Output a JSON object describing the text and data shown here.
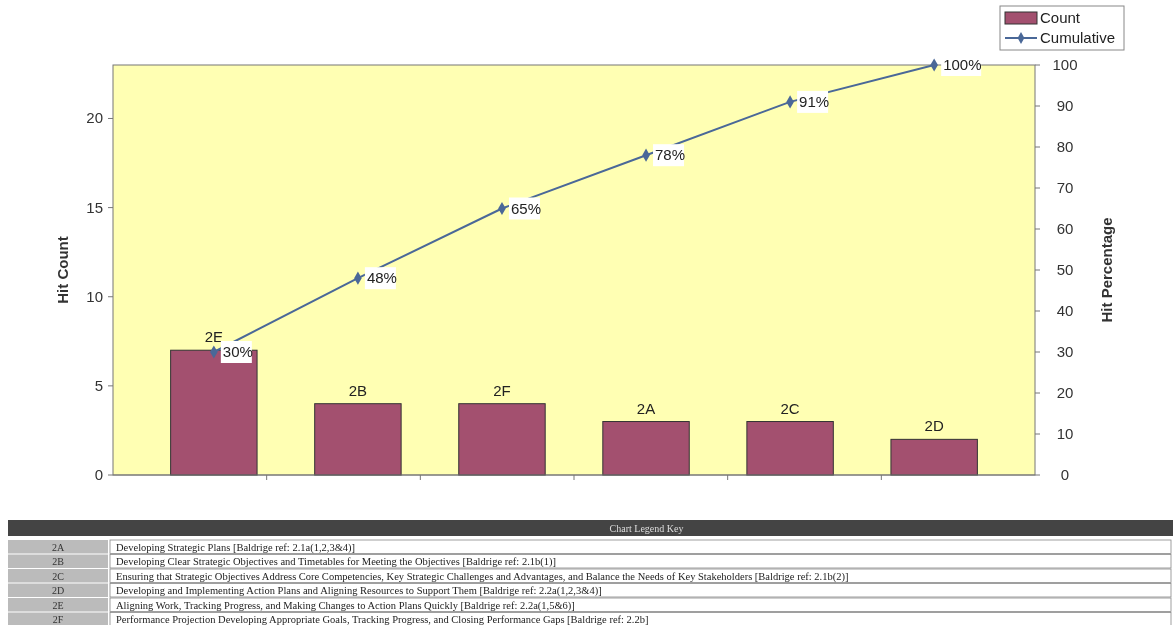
{
  "chart_data": {
    "type": "bar",
    "xlabel": null,
    "ylabel": "Hit Count",
    "y2label": "Hit Percentage",
    "categories": [
      "2E",
      "2B",
      "2F",
      "2A",
      "2C",
      "2D"
    ],
    "series": [
      {
        "name": "Count",
        "color": "#a3506f",
        "values": [
          7,
          4,
          4,
          3,
          3,
          2
        ]
      },
      {
        "name": "Cumulative",
        "type": "line",
        "axis": "y2",
        "color": "#4a6898",
        "values": [
          30,
          48,
          65,
          78,
          91,
          100
        ],
        "value_labels": [
          "30%",
          "48%",
          "65%",
          "78%",
          "91%",
          "100%"
        ],
        "marker": "diamond"
      }
    ],
    "ylim": [
      0,
      23
    ],
    "yticks": [
      0,
      5,
      10,
      15,
      20
    ],
    "y2lim": [
      0,
      100
    ],
    "y2ticks": [
      0,
      10,
      20,
      30,
      40,
      50,
      60,
      70,
      80,
      90,
      100
    ],
    "grid": false,
    "legend": "top right",
    "annotations": [
      "Chart Legend Key",
      "2A",
      "Developing Strategic Plans [Baldrige ref: 2.1a(1,2,3&4)]",
      "2B",
      "Developing Clear Strategic Objectives and Timetables for Meeting the Objectives [Baldrige ref: 2.1b(1)]",
      "2C",
      "Ensuring that Strategic Objectives Address Core Competencies, Key Strategic Challenges and Advantages, and Balance the Needs of Key Stakeholders [Baldrige ref: 2.1b(2)]",
      "2D",
      "Developing and Implementing Action Plans and Aligning Resources to Support Them [Baldrige ref: 2.2a(1,2,3&4)]",
      "2E",
      "Aligning Work, Tracking Progress, and Making Changes to Action Plans Quickly [Baldrige ref: 2.2a(1,5&6)]",
      "2F",
      "Performance Projection Developing Appropriate Goals, Tracking Progress, and Closing Performance Gaps [Baldrige ref: 2.2b]"
    ]
  }
}
